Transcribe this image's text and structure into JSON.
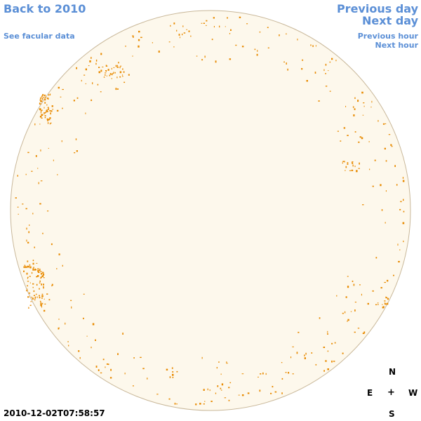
{
  "nav": {
    "back": "Back to 2010",
    "facular": "See facular data",
    "prev_day": "Previous day",
    "next_day": "Next day",
    "prev_hour": "Previous hour",
    "next_hour": "Next hour"
  },
  "compass": {
    "n": "N",
    "e": "E",
    "center": "+",
    "w": "W",
    "s": "S"
  },
  "timestamp": "2010-12-02T07:58:57",
  "colors": {
    "disk_fill": "#fdf8ec",
    "disk_edge": "#c9b89a",
    "facula": "#e88a00",
    "link": "#5b8fd6"
  }
}
